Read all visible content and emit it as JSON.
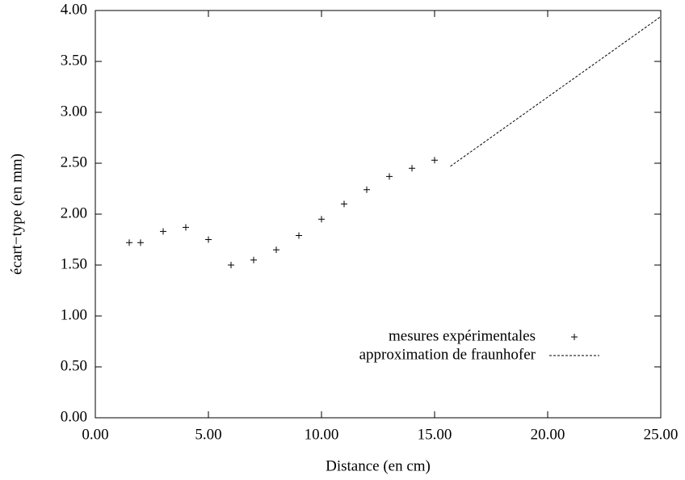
{
  "chart_data": {
    "type": "scatter",
    "xlabel": "Distance (en cm)",
    "ylabel": "écart−type (en mm)",
    "series": [
      {
        "name": "mesures expérimentales",
        "style": "points",
        "color": "#000000",
        "x": [
          1.5,
          2,
          3,
          4,
          5,
          6,
          7,
          8,
          9,
          10,
          11,
          12,
          13,
          14,
          15
        ],
        "values": [
          1.72,
          1.72,
          1.83,
          1.87,
          1.75,
          1.5,
          1.55,
          1.65,
          1.79,
          1.95,
          2.1,
          2.24,
          2.37,
          2.45,
          2.53
        ]
      },
      {
        "name": "approximation de fraunhofer",
        "style": "dashed-line",
        "color": "#000000",
        "x": [
          15.7,
          25
        ],
        "values": [
          2.47,
          3.94
        ]
      }
    ],
    "xlim": [
      0,
      25
    ],
    "xticks": [
      {
        "value": 0,
        "label": "0.00"
      },
      {
        "value": 5,
        "label": "5.00"
      },
      {
        "value": 10,
        "label": "10.00"
      },
      {
        "value": 15,
        "label": "15.00"
      },
      {
        "value": 20,
        "label": "20.00"
      },
      {
        "value": 25,
        "label": "25.00"
      }
    ],
    "ylim": [
      0,
      4
    ],
    "yticks": [
      {
        "value": 0,
        "label": "0.00"
      },
      {
        "value": 0.5,
        "label": "0.50"
      },
      {
        "value": 1,
        "label": "1.00"
      },
      {
        "value": 1.5,
        "label": "1.50"
      },
      {
        "value": 2,
        "label": "2.00"
      },
      {
        "value": 2.5,
        "label": "2.50"
      },
      {
        "value": 3,
        "label": "3.00"
      },
      {
        "value": 3.5,
        "label": "3.50"
      },
      {
        "value": 4,
        "label": "4.00"
      }
    ],
    "grid": false,
    "legend": "bottom right"
  }
}
